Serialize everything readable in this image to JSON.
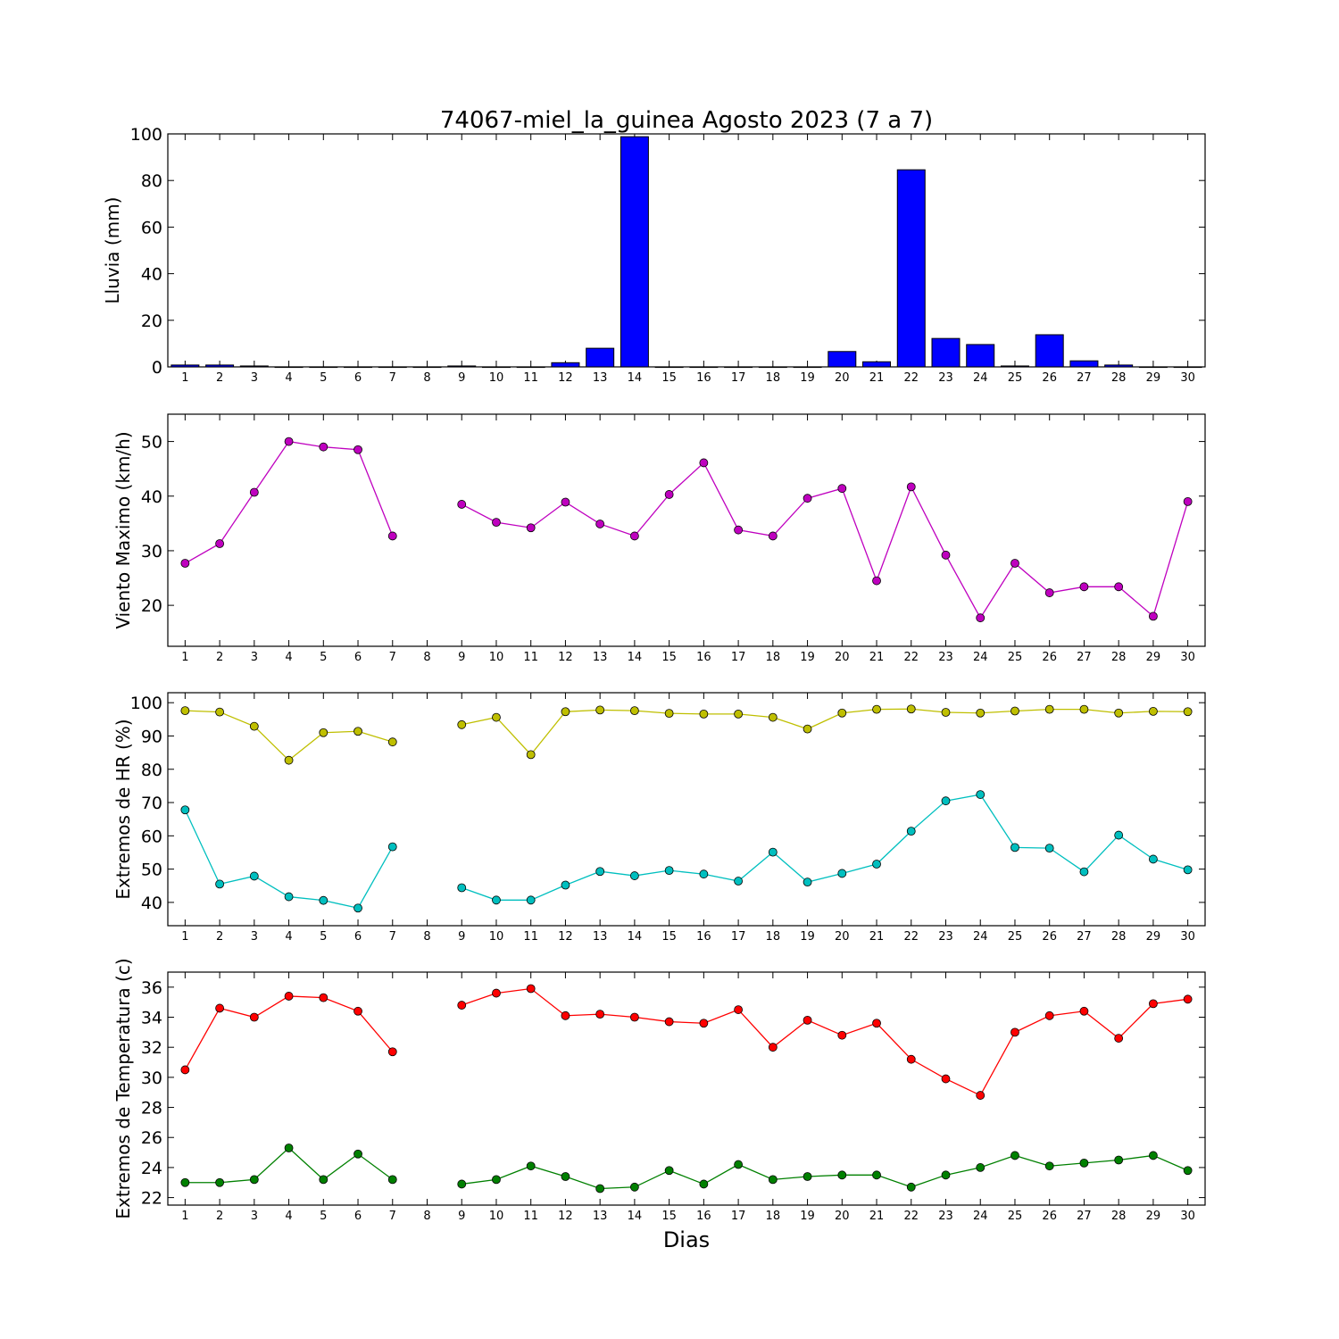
{
  "title": "74067-miel_la_guinea Agosto 2023  (7 a 7)",
  "xlabel": "Dias",
  "x_ticks": [
    "1",
    "2",
    "3",
    "4",
    "5",
    "6",
    "7",
    "8",
    "9",
    "10",
    "11",
    "12",
    "13",
    "14",
    "15",
    "16",
    "17",
    "18",
    "19",
    "20",
    "21",
    "22",
    "23",
    "24",
    "25",
    "26",
    "27",
    "28",
    "29",
    "30"
  ],
  "chart_data": [
    {
      "type": "bar",
      "ylabel": "Lluvia (mm)",
      "ylim": [
        0,
        100
      ],
      "yticks": [
        0,
        20,
        40,
        60,
        80,
        100
      ],
      "color": "#0000ff",
      "categories": [
        1,
        2,
        3,
        4,
        5,
        6,
        7,
        8,
        9,
        10,
        11,
        12,
        13,
        14,
        15,
        16,
        17,
        18,
        19,
        20,
        21,
        22,
        23,
        24,
        25,
        26,
        27,
        28,
        29,
        30
      ],
      "values": [
        0.8,
        0.8,
        0.4,
        0,
        0,
        0,
        0,
        0,
        0.4,
        0,
        0,
        1.8,
        8.0,
        98.8,
        0,
        0,
        0,
        0,
        0,
        6.6,
        2.2,
        84.6,
        12.2,
        9.6,
        0.4,
        13.8,
        2.6,
        0.8,
        0,
        0
      ]
    },
    {
      "type": "line",
      "ylabel": "Viento Maximo (km/h)",
      "ylim": [
        12.5,
        55
      ],
      "yticks": [
        20,
        30,
        40,
        50
      ],
      "x": [
        1,
        2,
        3,
        4,
        5,
        6,
        7,
        8,
        9,
        10,
        11,
        12,
        13,
        14,
        15,
        16,
        17,
        18,
        19,
        20,
        21,
        22,
        23,
        24,
        25,
        26,
        27,
        28,
        29,
        30
      ],
      "series": [
        {
          "color": "#bf00bf",
          "values": [
            27.7,
            31.3,
            40.7,
            50.0,
            49.0,
            48.5,
            32.7,
            null,
            38.5,
            35.2,
            34.2,
            38.9,
            34.9,
            32.7,
            40.3,
            46.1,
            33.8,
            32.7,
            39.6,
            41.4,
            24.5,
            41.7,
            29.2,
            17.7,
            27.7,
            22.3,
            23.4,
            23.4,
            18.0,
            39.0
          ]
        }
      ]
    },
    {
      "type": "line",
      "ylabel": "Extremos de HR (%)",
      "ylim": [
        33,
        103
      ],
      "yticks": [
        40,
        50,
        60,
        70,
        80,
        90,
        100
      ],
      "x": [
        1,
        2,
        3,
        4,
        5,
        6,
        7,
        8,
        9,
        10,
        11,
        12,
        13,
        14,
        15,
        16,
        17,
        18,
        19,
        20,
        21,
        22,
        23,
        24,
        25,
        26,
        27,
        28,
        29,
        30
      ],
      "series": [
        {
          "color": "#bfbf00",
          "values": [
            97.6,
            97.2,
            92.9,
            82.7,
            91.0,
            91.4,
            88.2,
            null,
            93.4,
            95.6,
            84.4,
            97.3,
            97.8,
            97.6,
            96.8,
            96.6,
            96.6,
            95.6,
            92.1,
            96.9,
            98.0,
            98.1,
            97.1,
            96.9,
            97.5,
            98.0,
            98.0,
            96.9,
            97.4,
            97.3
          ]
        },
        {
          "color": "#00bfbf",
          "values": [
            67.8,
            45.5,
            47.9,
            41.7,
            40.6,
            38.3,
            56.7,
            null,
            44.4,
            40.7,
            40.7,
            45.2,
            49.3,
            48.0,
            49.6,
            48.5,
            46.4,
            55.1,
            46.1,
            48.7,
            51.5,
            61.4,
            70.5,
            72.4,
            56.5,
            56.3,
            49.2,
            60.2,
            53.0,
            49.8
          ]
        }
      ]
    },
    {
      "type": "line",
      "ylabel": "Extremos de Temperatura (c)",
      "ylim": [
        21.5,
        37
      ],
      "yticks": [
        22,
        24,
        26,
        28,
        30,
        32,
        34,
        36
      ],
      "x": [
        1,
        2,
        3,
        4,
        5,
        6,
        7,
        8,
        9,
        10,
        11,
        12,
        13,
        14,
        15,
        16,
        17,
        18,
        19,
        20,
        21,
        22,
        23,
        24,
        25,
        26,
        27,
        28,
        29,
        30
      ],
      "series": [
        {
          "color": "#ff0000",
          "values": [
            30.5,
            34.6,
            34.0,
            35.4,
            35.3,
            34.4,
            31.7,
            null,
            34.8,
            35.6,
            35.9,
            34.1,
            34.2,
            34.0,
            33.7,
            33.6,
            34.5,
            32.0,
            33.8,
            32.8,
            33.6,
            31.2,
            29.9,
            28.8,
            33.0,
            34.1,
            34.4,
            32.6,
            34.9,
            35.2
          ]
        },
        {
          "color": "#008000",
          "values": [
            23.0,
            23.0,
            23.2,
            25.3,
            23.2,
            24.9,
            23.2,
            null,
            22.9,
            23.2,
            24.1,
            23.4,
            22.6,
            22.7,
            23.8,
            22.9,
            24.2,
            23.2,
            23.4,
            23.5,
            23.5,
            22.7,
            23.5,
            24.0,
            24.8,
            24.1,
            24.3,
            24.5,
            24.8,
            23.8
          ]
        }
      ]
    }
  ]
}
